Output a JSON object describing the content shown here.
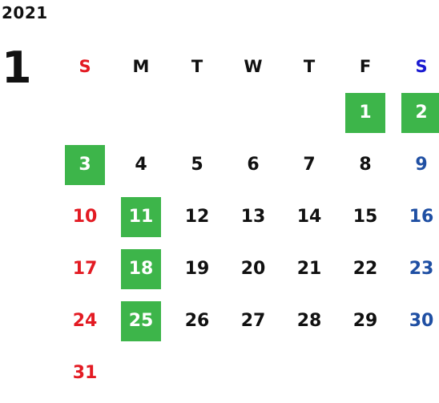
{
  "calendar": {
    "year": "2021",
    "month": "1",
    "weekdays": [
      "S",
      "M",
      "T",
      "W",
      "T",
      "F",
      "S"
    ],
    "colors": {
      "sunday": "#e31b23",
      "saturday": "#1f4fa3",
      "saturday_header": "#1a1ad1",
      "weekday": "#111111",
      "highlight_bg": "#3db54a",
      "highlight_text": "#ffffff"
    },
    "weeks": [
      [
        null,
        null,
        null,
        null,
        null,
        "1",
        "2"
      ],
      [
        "3",
        "4",
        "5",
        "6",
        "7",
        "8",
        "9"
      ],
      [
        "10",
        "11",
        "12",
        "13",
        "14",
        "15",
        "16"
      ],
      [
        "17",
        "18",
        "19",
        "20",
        "21",
        "22",
        "23"
      ],
      [
        "24",
        "25",
        "26",
        "27",
        "28",
        "29",
        "30"
      ],
      [
        "31",
        null,
        null,
        null,
        null,
        null,
        null
      ]
    ],
    "highlighted_days": [
      "1",
      "2",
      "3",
      "11",
      "18",
      "25"
    ]
  }
}
